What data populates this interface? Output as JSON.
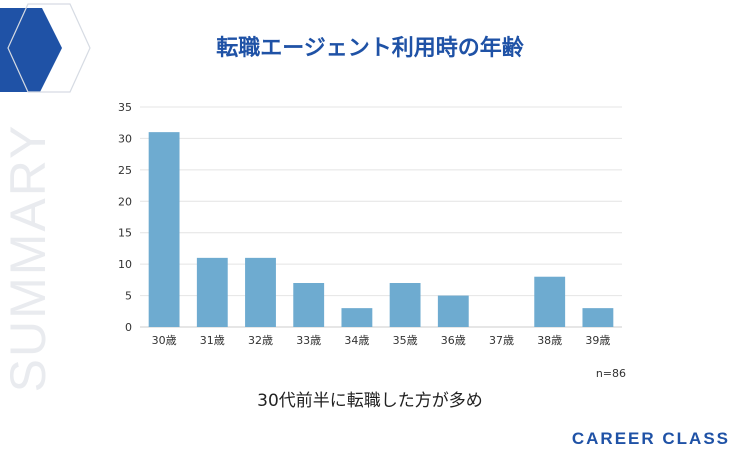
{
  "page": {
    "title": "転職エージェント利用時の年齢",
    "side_word": "SUMMARY",
    "sample_note": "n=86",
    "caption": "30代前半に転職した方が多め",
    "brand": "CAREER CLASS"
  },
  "colors": {
    "accent": "#1f52a6",
    "bar": "#6eabd0",
    "grid": "#e4e4e4"
  },
  "chart_data": {
    "type": "bar",
    "title": "転職エージェント利用時の年齢",
    "categories": [
      "30歳",
      "31歳",
      "32歳",
      "33歳",
      "34歳",
      "35歳",
      "36歳",
      "37歳",
      "38歳",
      "39歳"
    ],
    "values": [
      31,
      11,
      11,
      7,
      3,
      7,
      5,
      0,
      8,
      3
    ],
    "ylim": [
      0,
      35
    ],
    "yticks": [
      0,
      5,
      10,
      15,
      20,
      25,
      30,
      35
    ],
    "xlabel": "",
    "ylabel": "",
    "grid": true,
    "legend": "none"
  }
}
